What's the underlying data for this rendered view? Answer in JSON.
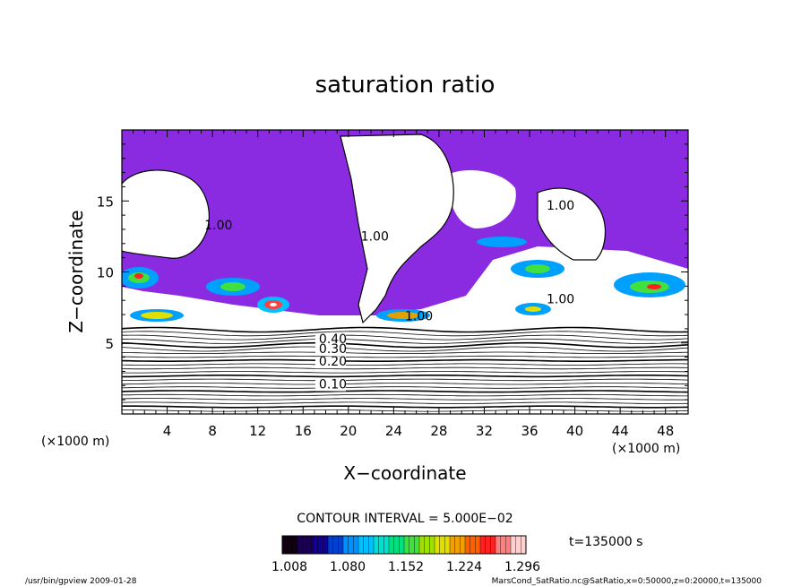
{
  "chart_data": {
    "type": "contour",
    "title": "saturation ratio",
    "xlabel": "X−coordinate",
    "ylabel": "Z−coordinate",
    "x_unit_left": "(×1000 m)",
    "x_unit_right": "(×1000 m)",
    "xlim": [
      0,
      50
    ],
    "ylim": [
      0,
      20
    ],
    "xticks": [
      4,
      8,
      12,
      16,
      20,
      24,
      28,
      32,
      36,
      40,
      44,
      48
    ],
    "yticks": [
      5,
      10,
      15
    ],
    "contour_labels": [
      {
        "text": "1.00",
        "x": 7.3,
        "z": 13.0
      },
      {
        "text": "1.00",
        "x": 21.1,
        "z": 12.2
      },
      {
        "text": "1.00",
        "x": 37.5,
        "z": 14.4
      },
      {
        "text": "1.00",
        "x": 37.5,
        "z": 7.8
      },
      {
        "text": "1.00",
        "x": 25.0,
        "z": 6.6
      },
      {
        "text": "0.40",
        "x": 17.4,
        "z": 5.0
      },
      {
        "text": "0.30",
        "x": 17.4,
        "z": 4.3
      },
      {
        "text": "0.20",
        "x": 17.4,
        "z": 3.4
      },
      {
        "text": "0.10",
        "x": 17.4,
        "z": 1.8
      }
    ],
    "contour_interval_label": "CONTOUR INTERVAL = 5.000E−02",
    "time_label": "t=135000 s",
    "colorbar": {
      "min": 1.008,
      "max": 1.296,
      "tick_labels": [
        "1.008",
        "1.080",
        "1.152",
        "1.224",
        "1.296"
      ],
      "colors": [
        "#110011",
        "#1a0050",
        "#120090",
        "#0040d0",
        "#0090ff",
        "#00c0ff",
        "#00e0d0",
        "#00e080",
        "#40e040",
        "#a0e000",
        "#e0e000",
        "#f0a000",
        "#ff6000",
        "#ff2020",
        "#ff8080",
        "#ffd0d0"
      ]
    },
    "footer_left": "/usr/bin/gpview   2009-01-28",
    "footer_right": "MarsCond_SatRatio.nc@SatRatio,x=0:50000,z=0:20000,t=135000",
    "colors": {
      "purple": "#8a2be2",
      "cloud_core": "#00c060"
    }
  }
}
